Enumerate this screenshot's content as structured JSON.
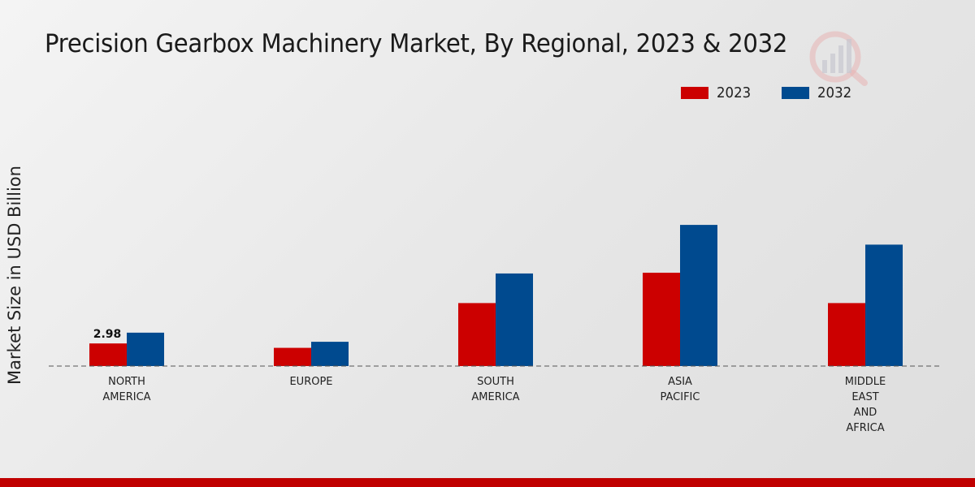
{
  "chart_data": {
    "type": "bar",
    "title": "Precision Gearbox Machinery Market, By Regional, 2023 & 2032",
    "xlabel": "",
    "ylabel": "Market Size in USD Billion",
    "categories": [
      "NORTH\nAMERICA",
      "EUROPE",
      "SOUTH\nAMERICA",
      "ASIA\nPACIFIC",
      "MIDDLE\nEAST\nAND\nAFRICA"
    ],
    "series": [
      {
        "name": "2023",
        "color": "#cc0000",
        "values": [
          2.98,
          2.4,
          8.3,
          12.3,
          8.3
        ]
      },
      {
        "name": "2032",
        "color": "#004a8f",
        "values": [
          4.4,
          3.2,
          12.2,
          18.6,
          16.0
        ]
      }
    ],
    "annotations": [
      {
        "series": 0,
        "index": 0,
        "label": "2.98"
      }
    ],
    "ylim": [
      0,
      30
    ],
    "grid": false,
    "legend_position": "top-right"
  }
}
